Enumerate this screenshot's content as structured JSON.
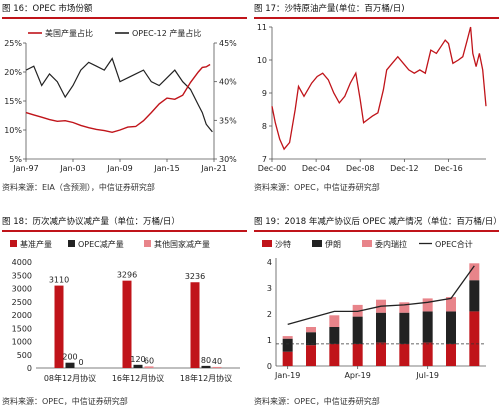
{
  "colors": {
    "red": "#c0141a",
    "black": "#222222",
    "pink": "#e8848a",
    "title_line": "#c0141a"
  },
  "panels": [
    {
      "title": "图 16：OPEC 市场份额",
      "source": "资料来源：EIA（含预测），中信证券研究部",
      "chart_data": {
        "type": "line",
        "legend": [
          "美国产量占比",
          "OPEC-12 产量占比"
        ],
        "legend_placement": "top",
        "x_ticks": [
          "Jan-97",
          "Jan-03",
          "Jan-09",
          "Jan-15",
          "Jan-21"
        ],
        "y_left_ticks": [
          "5%",
          "10%",
          "15%",
          "20%",
          "25%"
        ],
        "y_right_ticks": [
          "30%",
          "35%",
          "40%",
          "45%"
        ],
        "y_left_lim": [
          5,
          25
        ],
        "y_right_lim": [
          30,
          45
        ],
        "x_range": [
          1997,
          2021
        ],
        "series": [
          {
            "name": "美国产量占比",
            "axis": "left",
            "x": [
              1997,
              1998,
              1999,
              2000,
              2001,
              2002,
              2003,
              2004,
              2005,
              2006,
              2007,
              2008,
              2009,
              2010,
              2011,
              2012,
              2013,
              2014,
              2015,
              2016,
              2017,
              2018,
              2019,
              2019.5,
              2020,
              2020.5
            ],
            "y": [
              13.0,
              12.6,
              12.2,
              11.8,
              11.5,
              11.6,
              11.3,
              10.8,
              10.4,
              10.1,
              9.9,
              9.6,
              10.0,
              10.5,
              10.6,
              11.6,
              13.0,
              14.5,
              15.5,
              15.3,
              16.0,
              18.2,
              20.0,
              20.8,
              20.9,
              21.3
            ]
          },
          {
            "name": "OPEC-12 产量占比",
            "axis": "right",
            "x": [
              1997,
              1998,
              1999,
              2000,
              2001,
              2002,
              2003,
              2004,
              2005,
              2006,
              2007,
              2008,
              2009,
              2010,
              2011,
              2012,
              2013,
              2014,
              2015,
              2016,
              2017,
              2018,
              2019,
              2019.5,
              2020,
              2020.4,
              2020.8
            ],
            "y": [
              41.5,
              42.0,
              39.5,
              41.0,
              40.0,
              38.0,
              39.5,
              41.5,
              42.5,
              42.0,
              41.5,
              43.0,
              40.0,
              40.5,
              41.0,
              41.5,
              40.0,
              39.5,
              40.5,
              41.5,
              40.0,
              39.0,
              37.0,
              36.0,
              34.5,
              34.0,
              33.5
            ]
          }
        ]
      }
    },
    {
      "title": "图 17：沙特原油产量(单位：百万桶/日)",
      "source": "资料来源：OPEC，中信证券研究部",
      "chart_data": {
        "type": "line",
        "x_ticks": [
          "Dec-00",
          "Dec-04",
          "Dec-08",
          "Dec-12",
          "Dec-16"
        ],
        "y_ticks": [
          "7",
          "8",
          "9",
          "10",
          "11"
        ],
        "ylim": [
          7,
          11
        ],
        "x_range": [
          2000.9,
          2020.3
        ],
        "series": [
          {
            "name": "",
            "x": [
              2000.9,
              2001.2,
              2001.6,
              2002.0,
              2002.5,
              2003.0,
              2003.3,
              2003.8,
              2004.5,
              2005.0,
              2005.5,
              2006.0,
              2006.5,
              2007.0,
              2007.5,
              2008.0,
              2008.5,
              2008.9,
              2009.2,
              2009.6,
              2010.0,
              2010.5,
              2011.0,
              2011.3,
              2011.8,
              2012.3,
              2012.8,
              2013.3,
              2013.8,
              2014.3,
              2014.8,
              2015.3,
              2015.8,
              2016.2,
              2016.6,
              2016.9,
              2017.3,
              2017.8,
              2018.2,
              2018.6,
              2018.9,
              2019.1,
              2019.4,
              2019.7,
              2020.0,
              2020.3
            ],
            "y": [
              8.6,
              8.1,
              7.6,
              7.3,
              7.5,
              8.5,
              9.2,
              8.9,
              9.3,
              9.5,
              9.6,
              9.4,
              9.0,
              8.7,
              8.9,
              9.3,
              9.6,
              8.8,
              8.1,
              8.2,
              8.3,
              8.4,
              9.1,
              9.7,
              9.9,
              10.1,
              9.9,
              9.7,
              9.6,
              9.7,
              9.6,
              10.3,
              10.2,
              10.4,
              10.6,
              10.5,
              9.9,
              10.0,
              10.1,
              10.6,
              11.0,
              10.2,
              9.8,
              10.2,
              9.7,
              8.6
            ]
          }
        ]
      }
    },
    {
      "title": "图 18：历次减产协议减产量（单位：万桶/日）",
      "source": "资料来源：OPEC，中信证券研究部",
      "chart_data": {
        "type": "bar",
        "legend": [
          "基准产量",
          "OPEC减产量",
          "其他国家减产量"
        ],
        "legend_placement": "top",
        "categories": [
          "08年12月协议",
          "16年12月协议",
          "18年12月协议"
        ],
        "ylim": [
          0,
          4000
        ],
        "y_ticks": [
          "0",
          "500",
          "1000",
          "1500",
          "2000",
          "2500",
          "3000",
          "3500",
          "4000"
        ],
        "series": [
          {
            "name": "基准产量",
            "values": [
              3110,
              3296,
              3236
            ]
          },
          {
            "name": "OPEC减产量",
            "values": [
              200,
              120,
              80
            ]
          },
          {
            "name": "其他国家减产量",
            "values": [
              0,
              60,
              40
            ]
          }
        ],
        "data_labels": [
          [
            "3110",
            "3296",
            "3236"
          ],
          [
            "200",
            "120",
            "80"
          ],
          [
            "0",
            "60",
            "40"
          ]
        ]
      }
    },
    {
      "title": "图 19：2018 年减产协议后 OPEC 减产情况（单位：百万桶/日）",
      "source": "资料来源：OPEC，中信证券研究部",
      "chart_data": {
        "type": "bar",
        "stacked": true,
        "legend": [
          "沙特",
          "伊朗",
          "委内瑞拉",
          "OPEC合计"
        ],
        "legend_placement": "top",
        "x_ticks": [
          "Jan-19",
          "Apr-19",
          "Jul-19"
        ],
        "y_ticks": [
          "0",
          "1",
          "2",
          "3",
          "4"
        ],
        "ylim": [
          0,
          4
        ],
        "categories": [
          "Jan-19",
          "Feb-19",
          "Mar-19",
          "Apr-19",
          "May-19",
          "Jun-19",
          "Jul-19",
          "Aug-19",
          "Sep-19"
        ],
        "series": [
          {
            "name": "沙特",
            "values": [
              0.55,
              0.8,
              0.85,
              0.85,
              0.9,
              0.85,
              0.9,
              0.85,
              2.1
            ]
          },
          {
            "name": "伊朗",
            "values": [
              0.5,
              0.5,
              0.65,
              1.05,
              1.15,
              1.2,
              1.2,
              1.25,
              1.2
            ]
          },
          {
            "name": "委内瑞拉",
            "values": [
              0.1,
              0.2,
              0.45,
              0.45,
              0.5,
              0.4,
              0.5,
              0.55,
              0.65
            ]
          },
          {
            "name": "OPEC合计",
            "type": "line",
            "values": [
              1.6,
              1.85,
              2.1,
              2.1,
              2.3,
              2.35,
              2.45,
              2.6,
              3.85
            ]
          }
        ],
        "reference_line": 0.85
      }
    }
  ]
}
